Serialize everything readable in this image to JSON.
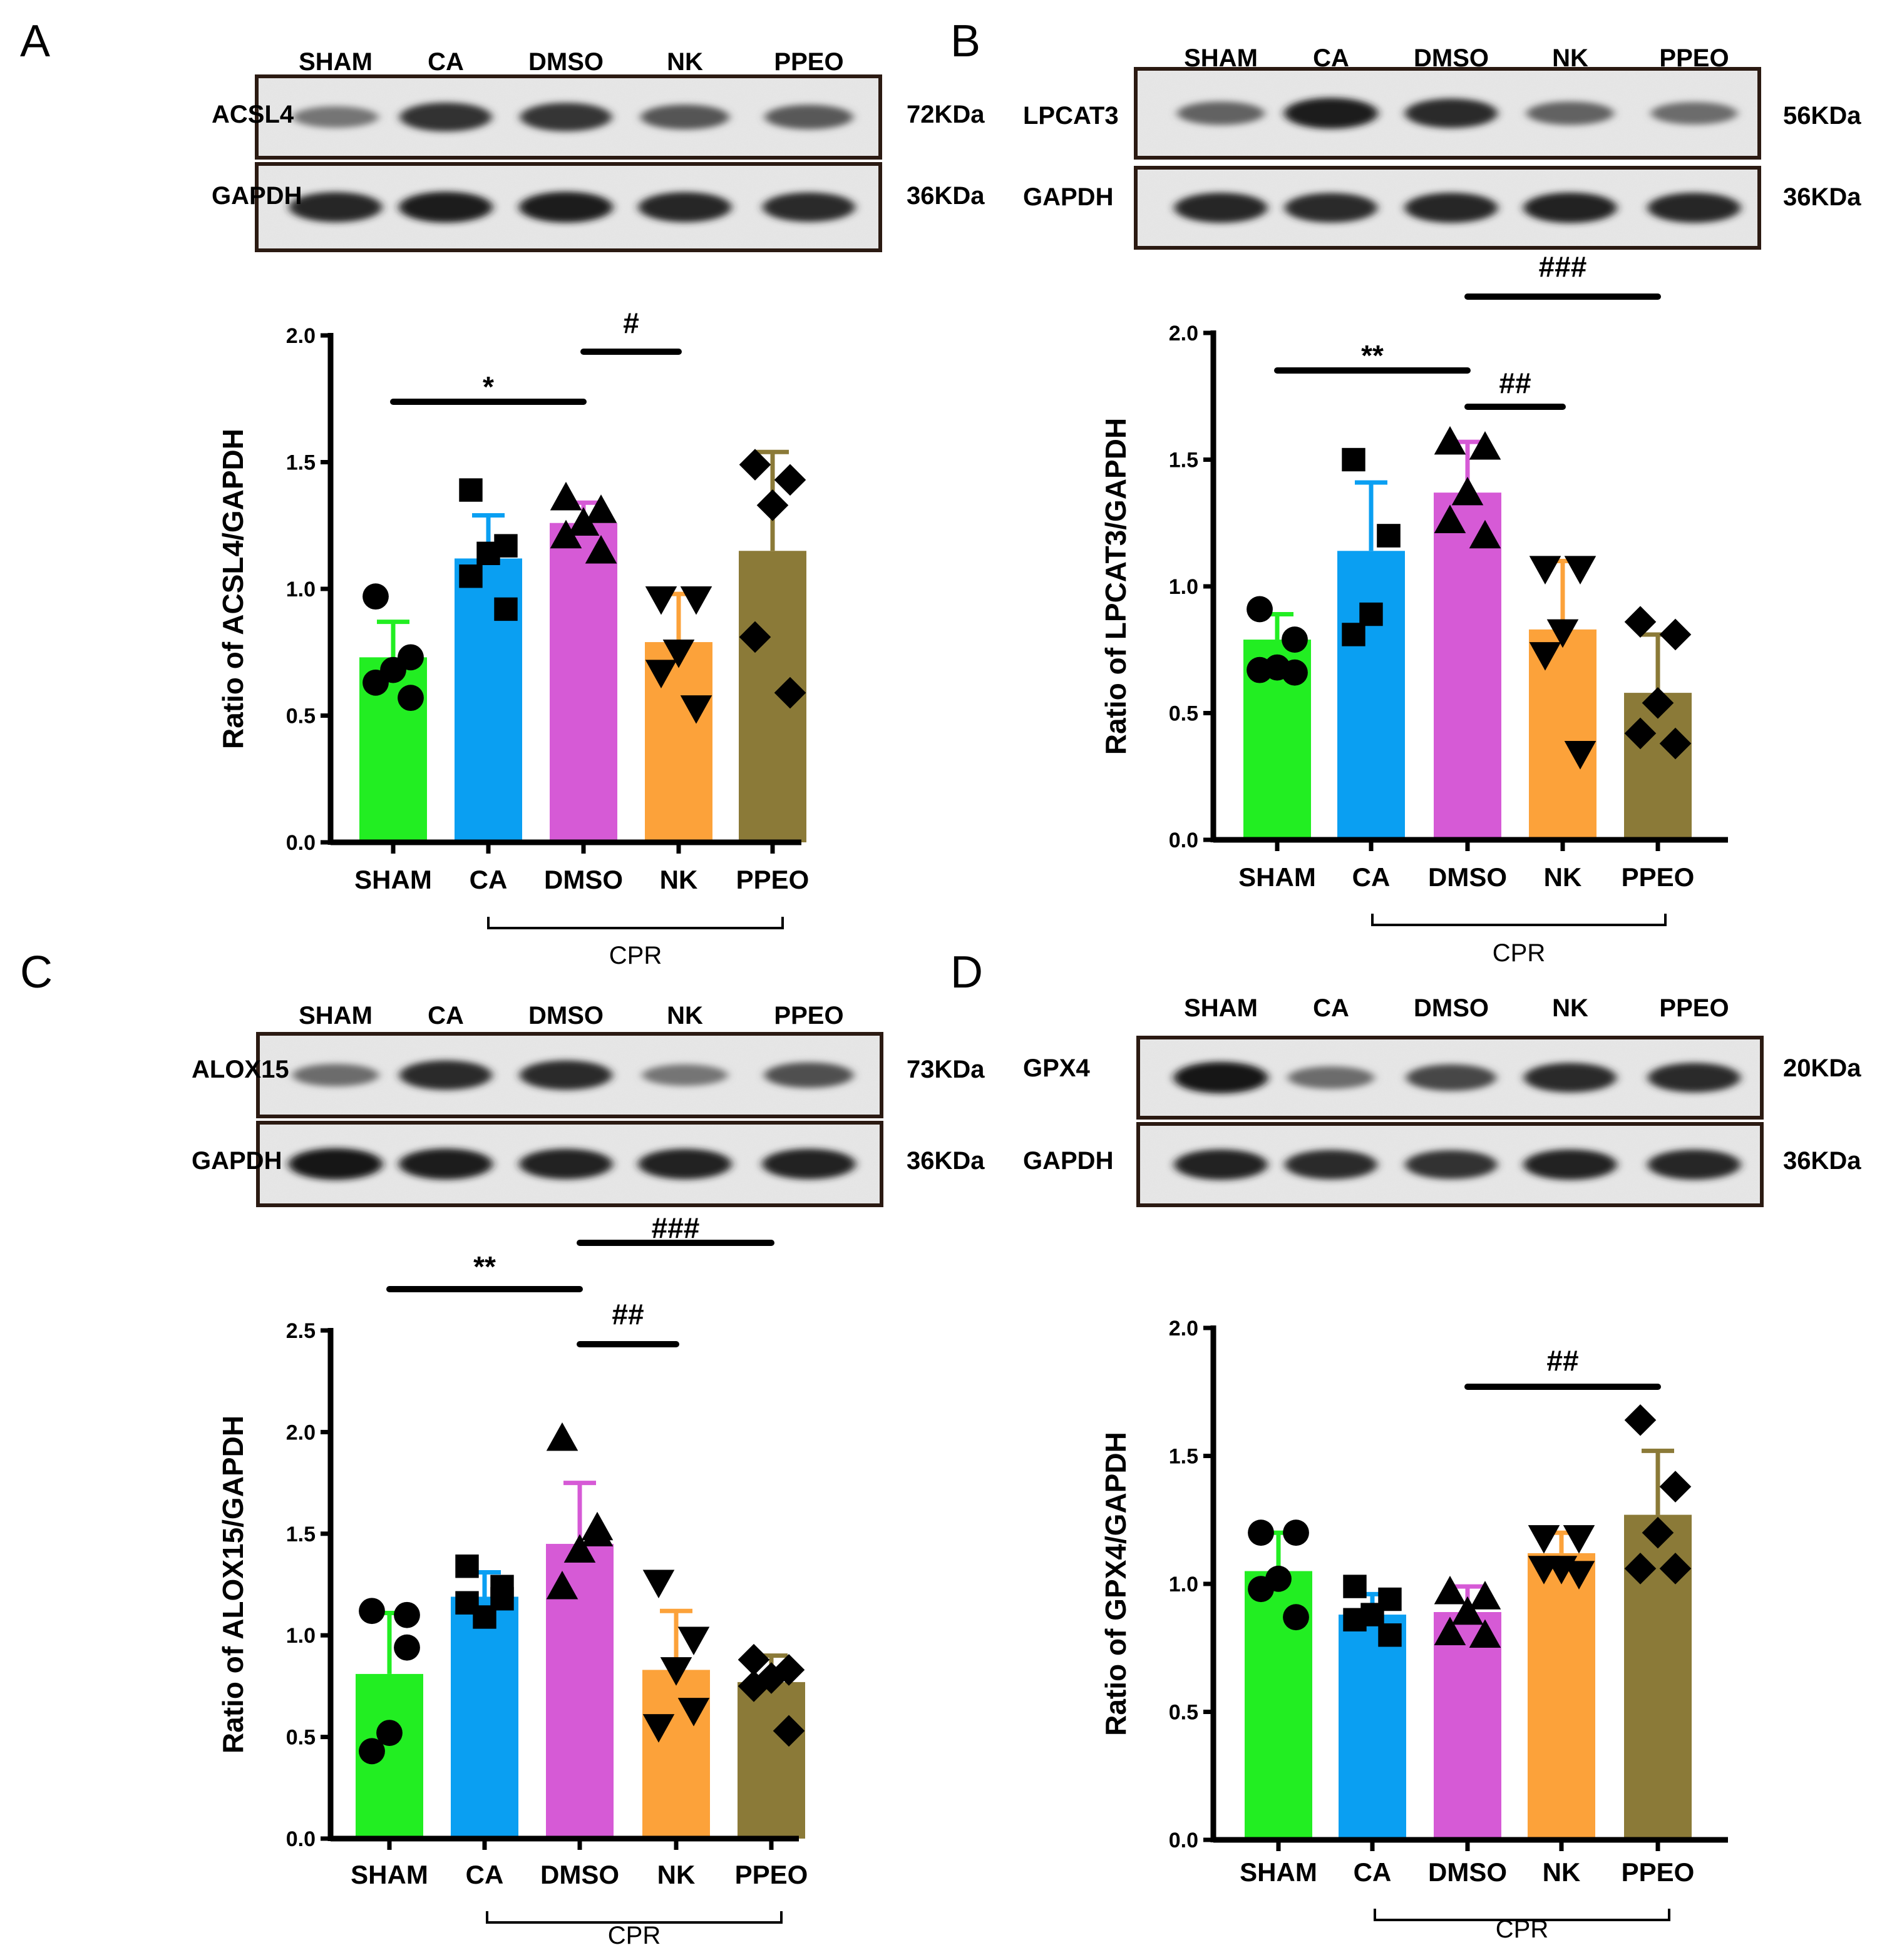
{
  "chart_data": [
    {
      "panel": "A",
      "type": "bar",
      "categories": [
        "SHAM",
        "CA",
        "DMSO",
        "NK",
        "PPEO"
      ],
      "ylabel": "Ratio of ACSL4/GAPDH",
      "ylim": [
        0,
        2.0
      ],
      "yticks": [
        "0.0",
        "0.5",
        "1.0",
        "1.5",
        "2.0"
      ],
      "values": [
        0.73,
        1.12,
        1.26,
        0.79,
        1.15
      ],
      "errors": [
        0.14,
        0.17,
        0.08,
        0.19,
        0.39
      ],
      "points": [
        [
          0.97,
          0.73,
          0.68,
          0.63,
          0.57
        ],
        [
          1.39,
          1.17,
          1.14,
          1.05,
          0.92
        ],
        [
          1.36,
          1.31,
          1.26,
          1.21,
          1.15
        ],
        [
          0.96,
          0.96,
          0.75,
          0.67,
          0.53
        ],
        [
          1.49,
          1.43,
          1.33,
          0.81,
          0.59
        ]
      ],
      "marker": [
        "circle",
        "square",
        "triangle-up",
        "triangle-down",
        "diamond"
      ],
      "colors": [
        "#22ee22",
        "#0a9ff2",
        "#d65ad6",
        "#fca23a",
        "#8b7a38"
      ],
      "group_label": "CPR",
      "blots": [
        {
          "protein": "ACSL4",
          "mw": "72KDa",
          "intensity": [
            0.45,
            0.82,
            0.8,
            0.62,
            0.6
          ]
        },
        {
          "protein": "GAPDH",
          "mw": "36KDa",
          "intensity": [
            0.88,
            0.92,
            0.92,
            0.88,
            0.85
          ]
        }
      ],
      "lanes": [
        "SHAM",
        "CA",
        "DMSO",
        "NK",
        "PPEO"
      ],
      "significance": [
        {
          "from": "SHAM",
          "to": "DMSO",
          "y": 1.73,
          "label": "*"
        },
        {
          "from": "DMSO",
          "to": "NK",
          "y": 1.93,
          "label": "#"
        }
      ]
    },
    {
      "panel": "B",
      "type": "bar",
      "categories": [
        "SHAM",
        "CA",
        "DMSO",
        "NK",
        "PPEO"
      ],
      "ylabel": "Ratio of LPCAT3/GAPDH",
      "ylim": [
        0,
        2.0
      ],
      "yticks": [
        "0.0",
        "0.5",
        "1.0",
        "1.5",
        "2.0"
      ],
      "values": [
        0.79,
        1.14,
        1.37,
        0.83,
        0.58
      ],
      "errors": [
        0.1,
        0.27,
        0.2,
        0.27,
        0.23
      ],
      "points": [
        [
          0.91,
          0.79,
          0.68,
          0.67,
          0.66
        ],
        [
          1.5,
          1.2,
          0.89,
          0.81,
          1.2
        ],
        [
          1.57,
          1.55,
          1.37,
          1.26,
          1.2
        ],
        [
          1.07,
          1.07,
          0.82,
          0.73,
          0.34
        ],
        [
          0.86,
          0.81,
          0.54,
          0.42,
          0.38
        ]
      ],
      "marker": [
        "circle",
        "square",
        "triangle-up",
        "triangle-down",
        "diamond"
      ],
      "colors": [
        "#22ee22",
        "#0a9ff2",
        "#d65ad6",
        "#fca23a",
        "#8b7a38"
      ],
      "group_label": "CPR",
      "blots": [
        {
          "protein": "LPCAT3",
          "mw": "56KDa",
          "intensity": [
            0.55,
            0.92,
            0.85,
            0.55,
            0.5
          ]
        },
        {
          "protein": "GAPDH",
          "mw": "36KDa",
          "intensity": [
            0.88,
            0.86,
            0.88,
            0.9,
            0.88
          ]
        }
      ],
      "lanes": [
        "SHAM",
        "CA",
        "DMSO",
        "NK",
        "PPEO"
      ],
      "significance": [
        {
          "from": "SHAM",
          "to": "DMSO",
          "y": 1.83,
          "label": "**"
        },
        {
          "from": "DMSO",
          "to": "NK",
          "y": 1.71,
          "label": "##"
        },
        {
          "from": "DMSO",
          "to": "PPEO",
          "y": 2.14,
          "label": "###"
        }
      ]
    },
    {
      "panel": "C",
      "type": "bar",
      "categories": [
        "SHAM",
        "CA",
        "DMSO",
        "NK",
        "PPEO"
      ],
      "ylabel": "Ratio of ALOX15/GAPDH",
      "ylim": [
        0,
        2.5
      ],
      "yticks": [
        "0.0",
        "0.5",
        "1.0",
        "1.5",
        "2.0",
        "2.5"
      ],
      "values": [
        0.81,
        1.19,
        1.45,
        0.83,
        0.77
      ],
      "errors": [
        0.3,
        0.12,
        0.3,
        0.29,
        0.13
      ],
      "points": [
        [
          1.12,
          0.94,
          0.52,
          0.43,
          1.1
        ],
        [
          1.34,
          1.24,
          1.09,
          1.16,
          1.18
        ],
        [
          1.97,
          1.53,
          1.42,
          1.24,
          1.5
        ],
        [
          1.26,
          0.98,
          0.83,
          0.55,
          0.63
        ],
        [
          0.88,
          0.83,
          0.79,
          0.75,
          0.53
        ]
      ],
      "marker": [
        "circle",
        "square",
        "triangle-up",
        "triangle-down",
        "diamond"
      ],
      "colors": [
        "#22ee22",
        "#0a9ff2",
        "#d65ad6",
        "#fca23a",
        "#8b7a38"
      ],
      "group_label": "CPR",
      "blots": [
        {
          "protein": "ALOX15",
          "mw": "73KDa",
          "intensity": [
            0.5,
            0.85,
            0.85,
            0.45,
            0.65
          ]
        },
        {
          "protein": "GAPDH",
          "mw": "36KDa",
          "intensity": [
            0.95,
            0.92,
            0.9,
            0.9,
            0.9
          ]
        }
      ],
      "lanes": [
        "SHAM",
        "CA",
        "DMSO",
        "NK",
        "PPEO"
      ],
      "significance": [
        {
          "from": "SHAM",
          "to": "DMSO",
          "y": 2.69,
          "label": "**"
        },
        {
          "from": "DMSO",
          "to": "NK",
          "y": 2.42,
          "label": "##"
        },
        {
          "from": "DMSO",
          "to": "PPEO",
          "y": 2.91,
          "label": "###"
        }
      ]
    },
    {
      "panel": "D",
      "type": "bar",
      "categories": [
        "SHAM",
        "CA",
        "DMSO",
        "NK",
        "PPEO"
      ],
      "ylabel": "Ratio of GPX4/GAPDH",
      "ylim": [
        0,
        2.0
      ],
      "yticks": [
        "0.0",
        "0.5",
        "1.0",
        "1.5",
        "2.0"
      ],
      "values": [
        1.05,
        0.88,
        0.89,
        1.12,
        1.27
      ],
      "errors": [
        0.15,
        0.08,
        0.1,
        0.08,
        0.25
      ],
      "points": [
        [
          1.2,
          1.2,
          1.02,
          0.98,
          0.87
        ],
        [
          0.99,
          0.94,
          0.88,
          0.86,
          0.8
        ],
        [
          0.97,
          0.95,
          0.89,
          0.81,
          0.8
        ],
        [
          1.18,
          1.18,
          1.06,
          1.06,
          1.04
        ],
        [
          1.64,
          1.38,
          1.2,
          1.06,
          1.06
        ]
      ],
      "marker": [
        "circle",
        "square",
        "triangle-up",
        "triangle-down",
        "diamond"
      ],
      "colors": [
        "#22ee22",
        "#0a9ff2",
        "#d65ad6",
        "#fca23a",
        "#8b7a38"
      ],
      "group_label": "CPR",
      "blots": [
        {
          "protein": "GPX4",
          "mw": "20KDa",
          "intensity": [
            0.95,
            0.5,
            0.7,
            0.85,
            0.85
          ]
        },
        {
          "protein": "GAPDH",
          "mw": "36KDa",
          "intensity": [
            0.9,
            0.85,
            0.82,
            0.9,
            0.88
          ]
        }
      ],
      "lanes": [
        "SHAM",
        "CA",
        "DMSO",
        "NK",
        "PPEO"
      ],
      "significance": [
        {
          "from": "DMSO",
          "to": "PPEO",
          "y": 1.76,
          "label": "##"
        }
      ]
    }
  ]
}
